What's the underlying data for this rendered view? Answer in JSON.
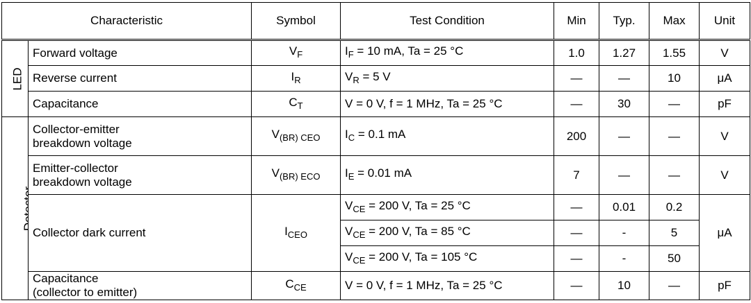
{
  "headers": {
    "characteristic": "Characteristic",
    "symbol": "Symbol",
    "test_condition": "Test Condition",
    "min": "Min",
    "typ": "Typ.",
    "max": "Max",
    "unit": "Unit"
  },
  "groups": {
    "led": "LED",
    "detector": "Detector"
  },
  "rows": {
    "forward_voltage": {
      "name": "Forward voltage",
      "symbol_main": "V",
      "symbol_sub": "F",
      "cond_main": "I",
      "cond_sub": "F",
      "cond_rest": " = 10 mA, Ta = 25 °C",
      "min": "1.0",
      "typ": "1.27",
      "max": "1.55",
      "unit": "V"
    },
    "reverse_current": {
      "name": "Reverse current",
      "symbol_main": "I",
      "symbol_sub": "R",
      "cond_main": "V",
      "cond_sub": "R",
      "cond_rest": " = 5 V",
      "min": "—",
      "typ": "—",
      "max": "10",
      "unit": "μA"
    },
    "led_capacitance": {
      "name": "Capacitance",
      "symbol_main": "C",
      "symbol_sub": "T",
      "cond": "V = 0 V, f = 1 MHz, Ta = 25 °C",
      "min": "—",
      "typ": "30",
      "max": "—",
      "unit": "pF"
    },
    "ce_breakdown": {
      "name_line1": "Collector-emitter",
      "name_line2": "breakdown voltage",
      "symbol_main": "V",
      "symbol_sub": "(BR) CEO",
      "cond_main": "I",
      "cond_sub": "C",
      "cond_rest": " = 0.1 mA",
      "min": "200",
      "typ": "—",
      "max": "—",
      "unit": "V"
    },
    "ec_breakdown": {
      "name_line1": "Emitter-collector",
      "name_line2": "breakdown voltage",
      "symbol_main": "V",
      "symbol_sub": "(BR) ECO",
      "cond_main": "I",
      "cond_sub": "E",
      "cond_rest": " = 0.01 mA",
      "min": "7",
      "typ": "—",
      "max": "—",
      "unit": "V"
    },
    "dark_current": {
      "name": "Collector dark current",
      "symbol_main": "I",
      "symbol_sub": "CEO",
      "unit": "μA",
      "conditions": [
        {
          "cond_main": "V",
          "cond_sub": "CE",
          "cond_rest": " = 200 V, Ta = 25 °C",
          "min": "—",
          "typ": "0.01",
          "max": "0.2"
        },
        {
          "cond_main": "V",
          "cond_sub": "CE",
          "cond_rest": " = 200 V, Ta = 85 °C",
          "min": "—",
          "typ": "-",
          "max": "5"
        },
        {
          "cond_main": "V",
          "cond_sub": "CE",
          "cond_rest": " = 200 V, Ta = 105 °C",
          "min": "—",
          "typ": "-",
          "max": "50"
        }
      ]
    },
    "det_capacitance": {
      "name_line1": "Capacitance",
      "name_line2": "(collector to emitter)",
      "symbol_main": "C",
      "symbol_sub": "CE",
      "cond": "V = 0 V, f = 1 MHz, Ta = 25 °C",
      "min": "—",
      "typ": "10",
      "max": "—",
      "unit": "pF"
    }
  }
}
